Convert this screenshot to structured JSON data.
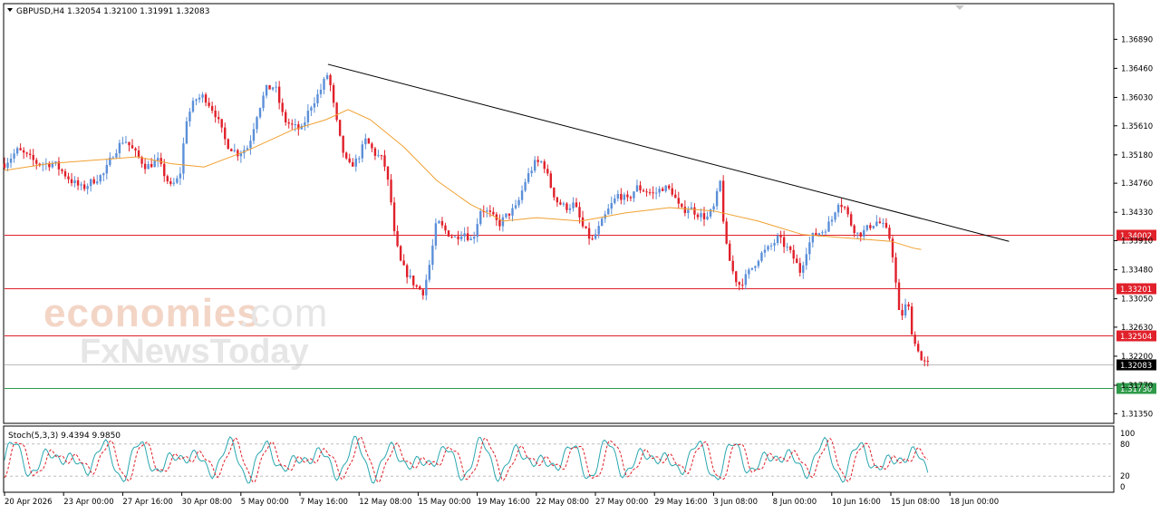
{
  "chart_data": {
    "type": "candlestick",
    "symbol_header": "GBPUSD,H4  1.32054 1.32100 1.31991 1.32083",
    "price_ticks": [
      "1.36890",
      "1.36460",
      "1.36030",
      "1.35610",
      "1.35180",
      "1.34760",
      "1.34330",
      "1.33910",
      "1.33480",
      "1.33050",
      "1.32630",
      "1.32200",
      "1.31770",
      "1.31350"
    ],
    "price_range": [
      1.3122,
      1.3723
    ],
    "horizontal_levels": [
      {
        "label": "1.34002",
        "value": 1.34002,
        "color": "#e0202a"
      },
      {
        "label": "1.33201",
        "value": 1.33201,
        "color": "#e0202a"
      },
      {
        "label": "1.32504",
        "value": 1.32504,
        "color": "#e0202a"
      },
      {
        "label": "1.32083",
        "value": 1.32083,
        "color": "#bbbbbb",
        "current": true
      },
      {
        "label": "1.31730",
        "value": 1.3173,
        "color": "#2e9a4a"
      }
    ],
    "trendline": {
      "from": [
        0.2918,
        1.3652
      ],
      "to": [
        0.9063,
        1.339
      ],
      "color": "#000000"
    },
    "time_ticks": [
      "20 Apr 2026",
      "23 Apr 00:00",
      "27 Apr 16:00",
      "30 Apr 08:00",
      "5 May 00:00",
      "7 May 16:00",
      "12 May 08:00",
      "15 May 00:00",
      "19 May 16:00",
      "22 May 08:00",
      "27 May 00:00",
      "29 May 16:00",
      "3 Jun 08:00",
      "8 Jun 00:00",
      "10 Jun 16:00",
      "15 Jun 08:00",
      "18 Jun 00:00"
    ],
    "close_path": [
      [
        0.0,
        1.3505
      ],
      [
        0.012,
        1.3525
      ],
      [
        0.03,
        1.3505
      ],
      [
        0.045,
        1.3505
      ],
      [
        0.06,
        1.348
      ],
      [
        0.07,
        1.3468
      ],
      [
        0.08,
        1.348
      ],
      [
        0.09,
        1.349
      ],
      [
        0.098,
        1.352
      ],
      [
        0.108,
        1.3542
      ],
      [
        0.118,
        1.352
      ],
      [
        0.128,
        1.35
      ],
      [
        0.138,
        1.351
      ],
      [
        0.15,
        1.347
      ],
      [
        0.158,
        1.3485
      ],
      [
        0.164,
        1.357
      ],
      [
        0.172,
        1.36
      ],
      [
        0.18,
        1.3605
      ],
      [
        0.19,
        1.358
      ],
      [
        0.2,
        1.3535
      ],
      [
        0.21,
        1.352
      ],
      [
        0.22,
        1.353
      ],
      [
        0.228,
        1.358
      ],
      [
        0.236,
        1.3615
      ],
      [
        0.244,
        1.362
      ],
      [
        0.252,
        1.357
      ],
      [
        0.26,
        1.356
      ],
      [
        0.268,
        1.3555
      ],
      [
        0.276,
        1.359
      ],
      [
        0.284,
        1.361
      ],
      [
        0.292,
        1.364
      ],
      [
        0.298,
        1.358
      ],
      [
        0.304,
        1.353
      ],
      [
        0.31,
        1.35
      ],
      [
        0.318,
        1.351
      ],
      [
        0.326,
        1.354
      ],
      [
        0.334,
        1.352
      ],
      [
        0.342,
        1.351
      ],
      [
        0.348,
        1.346
      ],
      [
        0.352,
        1.3395
      ],
      [
        0.358,
        1.3355
      ],
      [
        0.366,
        1.3335
      ],
      [
        0.372,
        1.3322
      ],
      [
        0.378,
        1.3315
      ],
      [
        0.384,
        1.336
      ],
      [
        0.39,
        1.342
      ],
      [
        0.398,
        1.3405
      ],
      [
        0.406,
        1.3395
      ],
      [
        0.414,
        1.3405
      ],
      [
        0.422,
        1.339
      ],
      [
        0.43,
        1.344
      ],
      [
        0.438,
        1.343
      ],
      [
        0.446,
        1.3415
      ],
      [
        0.454,
        1.343
      ],
      [
        0.462,
        1.344
      ],
      [
        0.47,
        1.348
      ],
      [
        0.478,
        1.3505
      ],
      [
        0.486,
        1.3508
      ],
      [
        0.492,
        1.3475
      ],
      [
        0.498,
        1.345
      ],
      [
        0.506,
        1.344
      ],
      [
        0.514,
        1.3445
      ],
      [
        0.522,
        1.341
      ],
      [
        0.53,
        1.339
      ],
      [
        0.538,
        1.3415
      ],
      [
        0.546,
        1.344
      ],
      [
        0.554,
        1.346
      ],
      [
        0.562,
        1.345
      ],
      [
        0.57,
        1.347
      ],
      [
        0.578,
        1.3465
      ],
      [
        0.586,
        1.346
      ],
      [
        0.594,
        1.347
      ],
      [
        0.602,
        1.3465
      ],
      [
        0.61,
        1.3435
      ],
      [
        0.618,
        1.344
      ],
      [
        0.626,
        1.343
      ],
      [
        0.634,
        1.3425
      ],
      [
        0.64,
        1.344
      ],
      [
        0.646,
        1.348
      ],
      [
        0.65,
        1.339
      ],
      [
        0.656,
        1.335
      ],
      [
        0.662,
        1.3325
      ],
      [
        0.668,
        1.3335
      ],
      [
        0.674,
        1.335
      ],
      [
        0.682,
        1.337
      ],
      [
        0.69,
        1.338
      ],
      [
        0.698,
        1.3395
      ],
      [
        0.706,
        1.338
      ],
      [
        0.712,
        1.3365
      ],
      [
        0.718,
        1.3345
      ],
      [
        0.724,
        1.338
      ],
      [
        0.73,
        1.34
      ],
      [
        0.738,
        1.3405
      ],
      [
        0.746,
        1.342
      ],
      [
        0.752,
        1.345
      ],
      [
        0.758,
        1.344
      ],
      [
        0.764,
        1.3415
      ],
      [
        0.77,
        1.34
      ],
      [
        0.776,
        1.3405
      ],
      [
        0.782,
        1.3415
      ],
      [
        0.788,
        1.342
      ],
      [
        0.794,
        1.341
      ],
      [
        0.8,
        1.339
      ],
      [
        0.804,
        1.333
      ],
      [
        0.808,
        1.327
      ],
      [
        0.812,
        1.3295
      ],
      [
        0.816,
        1.329
      ],
      [
        0.82,
        1.324
      ],
      [
        0.824,
        1.3235
      ],
      [
        0.826,
        1.3215
      ],
      [
        0.83,
        1.321
      ],
      [
        0.833,
        1.3208
      ]
    ],
    "ma_path": [
      [
        0.0,
        1.3495
      ],
      [
        0.04,
        1.3505
      ],
      [
        0.08,
        1.351
      ],
      [
        0.12,
        1.3515
      ],
      [
        0.15,
        1.3505
      ],
      [
        0.18,
        1.35
      ],
      [
        0.22,
        1.3525
      ],
      [
        0.26,
        1.3555
      ],
      [
        0.29,
        1.357
      ],
      [
        0.31,
        1.3585
      ],
      [
        0.33,
        1.357
      ],
      [
        0.36,
        1.353
      ],
      [
        0.39,
        1.348
      ],
      [
        0.42,
        1.3445
      ],
      [
        0.45,
        1.342
      ],
      [
        0.48,
        1.3425
      ],
      [
        0.52,
        1.342
      ],
      [
        0.56,
        1.3432
      ],
      [
        0.6,
        1.344
      ],
      [
        0.64,
        1.3435
      ],
      [
        0.68,
        1.342
      ],
      [
        0.72,
        1.34
      ],
      [
        0.76,
        1.3395
      ],
      [
        0.8,
        1.339
      ],
      [
        0.82,
        1.338
      ],
      [
        0.827,
        1.3378
      ]
    ],
    "ma_color": "#f0a030",
    "oscillator": {
      "label": "Stoch(5,3,3) 9.4394 9.9850",
      "ticks": [
        "100",
        "80",
        "20",
        "0"
      ],
      "range": [
        0,
        100
      ],
      "levels": [
        80,
        20
      ]
    }
  },
  "watermark": {
    "line1_a": "economies",
    "line1_b": ".com",
    "line2": "FxNewsToday"
  }
}
